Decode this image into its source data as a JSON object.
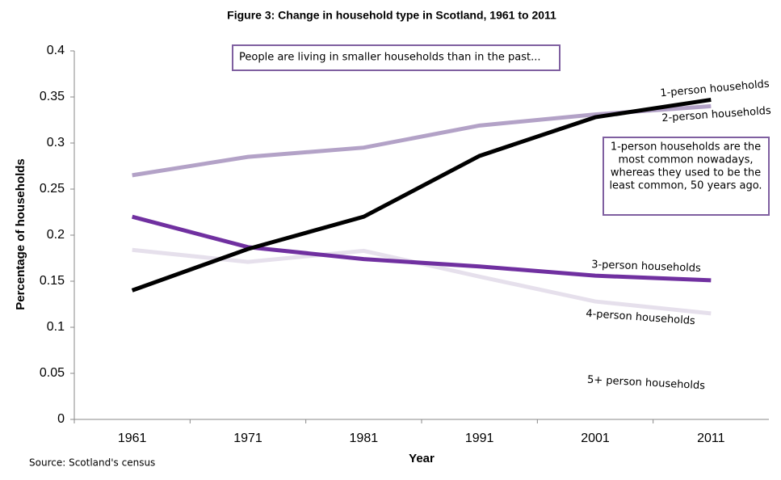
{
  "chart_data": {
    "type": "line",
    "title": "Figure 3: Change in household type in Scotland, 1961 to 2011",
    "x_label": "Year",
    "y_label": "Percentage of households",
    "categories": [
      "1961",
      "1971",
      "1981",
      "1991",
      "2001",
      "2011"
    ],
    "series": [
      {
        "name": "1-person households",
        "color": "#000000",
        "values": [
          0.14,
          0.185,
          0.22,
          0.286,
          0.328,
          0.347
        ]
      },
      {
        "name": "2-person households",
        "color": "#b3a2c7",
        "values": [
          0.265,
          0.285,
          0.295,
          0.319,
          0.331,
          0.34
        ]
      },
      {
        "name": "3-person households",
        "color": "#7030a0",
        "values": [
          0.22,
          0.187,
          0.174,
          0.166,
          0.156,
          0.151
        ]
      },
      {
        "name": "4-person households",
        "color": "#e6e0ec",
        "values": [
          0.184,
          0.171,
          0.183,
          0.155,
          0.128,
          0.115
        ]
      }
    ],
    "ylim": [
      0,
      0.4
    ],
    "yticks": [
      0,
      0.05,
      0.1,
      0.15,
      0.2,
      0.25,
      0.3,
      0.35,
      0.4
    ],
    "annotations": [
      "People are living in smaller households than in the past...",
      "1-person households are the",
      "most common  nowadays,",
      "whereas they used to be the",
      "least common,  50 years ago.",
      "5+ person households"
    ],
    "source": "Source: Scotland's census"
  }
}
